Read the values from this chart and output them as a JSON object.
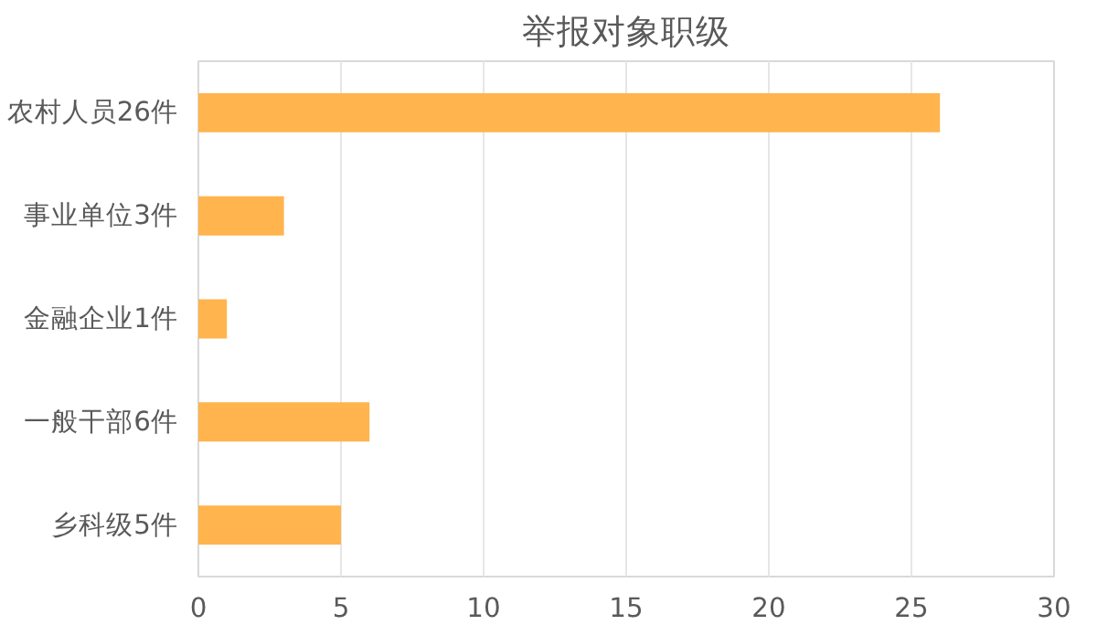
{
  "chart_data": {
    "type": "bar",
    "orientation": "horizontal",
    "title": "举报对象职级",
    "categories": [
      "农村人员26件",
      "事业单位3件",
      "金融企业1件",
      "一般干部6件",
      "乡科级5件"
    ],
    "values": [
      26,
      3,
      1,
      6,
      5
    ],
    "color": "#ffb44d",
    "xlim": [
      0,
      30
    ],
    "xticks": [
      0,
      5,
      10,
      15,
      20,
      25,
      30
    ],
    "grid": "x"
  }
}
